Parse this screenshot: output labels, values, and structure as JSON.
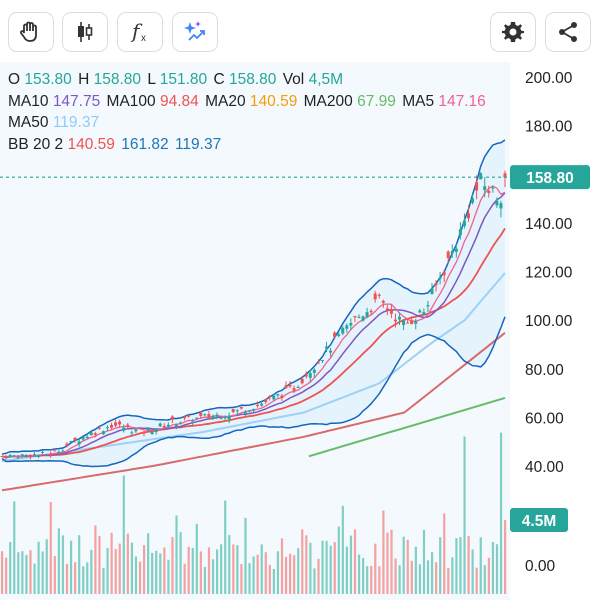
{
  "toolbar": {
    "buttons": [
      {
        "name": "hand-icon"
      },
      {
        "name": "candlestick-icon"
      },
      {
        "name": "function-icon"
      },
      {
        "name": "ai-sparkle-icon"
      },
      {
        "name": "gear-icon"
      },
      {
        "name": "share-icon"
      }
    ]
  },
  "info": {
    "o_label": "O",
    "o": "153.80",
    "h_label": "H",
    "h": "158.80",
    "l_label": "L",
    "l": "151.80",
    "c_label": "C",
    "c": "158.80",
    "vol_label": "Vol",
    "vol": "4,5M",
    "ma10_label": "MA10",
    "ma10": "147.75",
    "ma100_label": "MA100",
    "ma100": "94.84",
    "ma20_label": "MA20",
    "ma20": "140.59",
    "ma200_label": "MA200",
    "ma200": "67.99",
    "ma5_label": "MA5",
    "ma5": "147.16",
    "ma50_label": "MA50",
    "ma50": "119.37",
    "bb_label": "BB 20 2",
    "bb_mid": "140.59",
    "bb_up": "161.82",
    "bb_low": "119.37"
  },
  "colors": {
    "up": "#26a69a",
    "down": "#ef5350",
    "ma5": "#f06292",
    "ma10": "#7e57c2",
    "ma20": "#ef5350",
    "ma50": "#90caf9",
    "ma100": "#c62828",
    "ma200": "#66bb6a",
    "bb": "#1565c0",
    "bb_fill": "#e3f2fd",
    "text_up": "#26a69a",
    "text_ma10": "#7e57c2",
    "text_ma100": "#ef5350",
    "text_ma20": "#f59e0b",
    "text_ma200": "#66bb6a",
    "text_ma5": "#f06292",
    "text_ma50": "#90caf9",
    "text_bb": "#1f77b4"
  },
  "chart_data": {
    "type": "candlestick",
    "y_ticks": [
      "200.00",
      "180.00",
      "160.00",
      "140.00",
      "120.00",
      "100.00",
      "80.00",
      "60.00",
      "40.00",
      "0.00"
    ],
    "ylim": [
      0,
      200
    ],
    "last_price": "158.80",
    "last_volume": "4.5M",
    "trend_points": [
      [
        0,
        44
      ],
      [
        10,
        45
      ],
      [
        16,
        52
      ],
      [
        22,
        57
      ],
      [
        28,
        54
      ],
      [
        34,
        58
      ],
      [
        40,
        60
      ],
      [
        46,
        62
      ],
      [
        52,
        66
      ],
      [
        58,
        72
      ],
      [
        64,
        86
      ],
      [
        70,
        100
      ],
      [
        75,
        108
      ],
      [
        80,
        98
      ],
      [
        84,
        104
      ],
      [
        90,
        130
      ],
      [
        95,
        157
      ],
      [
        99,
        150
      ],
      [
        100,
        158.8
      ]
    ],
    "ma50_points": [
      [
        0,
        42
      ],
      [
        20,
        48
      ],
      [
        40,
        54
      ],
      [
        60,
        62
      ],
      [
        75,
        74
      ],
      [
        85,
        90
      ],
      [
        92,
        100
      ],
      [
        100,
        119.4
      ]
    ],
    "ma100_points": [
      [
        0,
        30
      ],
      [
        30,
        40
      ],
      [
        60,
        52
      ],
      [
        80,
        62
      ],
      [
        100,
        94.8
      ]
    ],
    "ma200_points": [
      [
        61,
        44
      ],
      [
        100,
        67.99
      ]
    ],
    "volume_spikes": [
      [
        24,
        45
      ],
      [
        92,
        75
      ],
      [
        99,
        78
      ]
    ]
  }
}
